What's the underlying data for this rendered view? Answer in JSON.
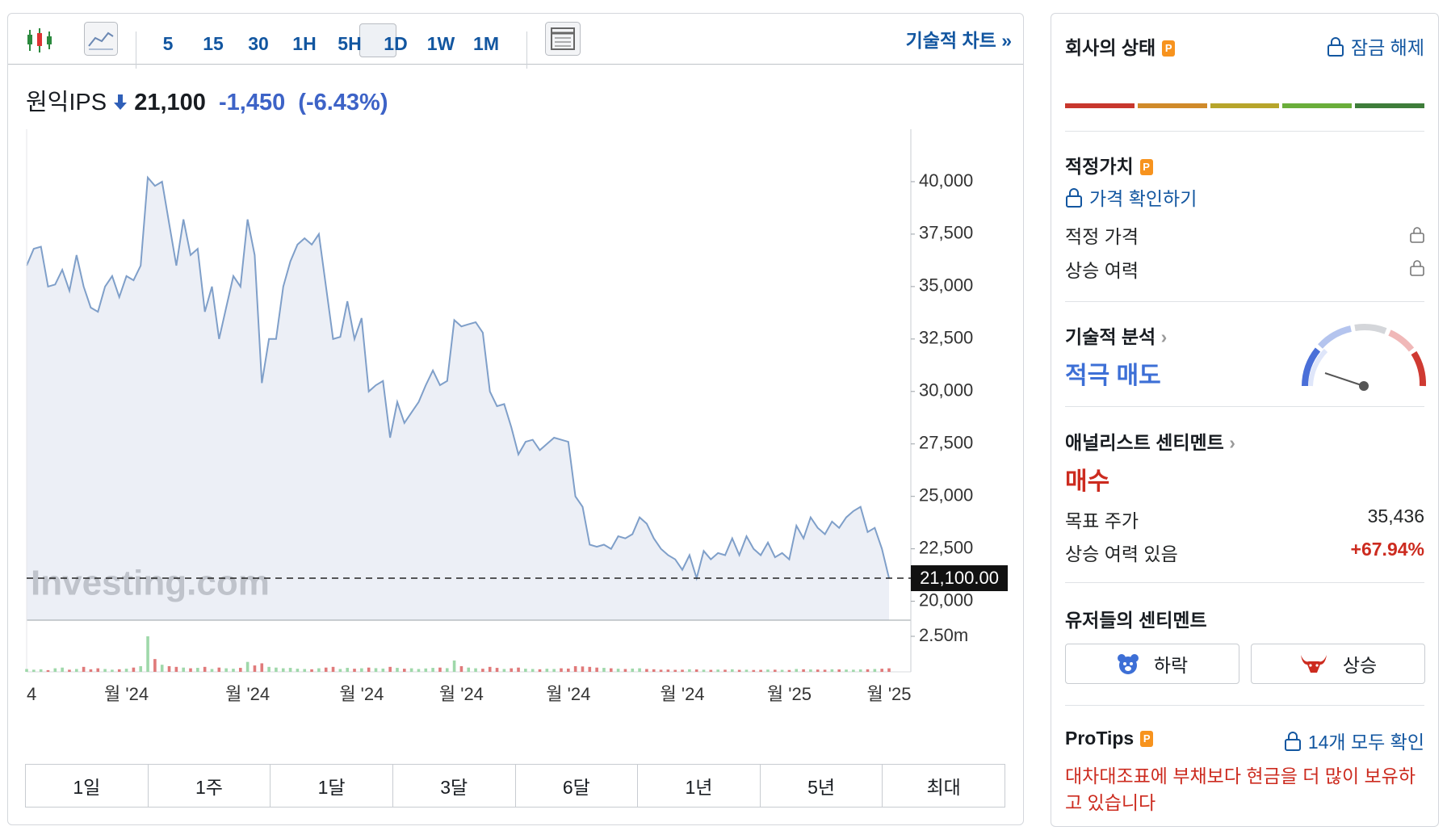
{
  "toolbar": {
    "intervals": [
      "5",
      "15",
      "30",
      "1H",
      "5H",
      "1D",
      "1W",
      "1M"
    ],
    "active_interval": "1D",
    "technical_link": "기술적 차트 »"
  },
  "quote": {
    "name": "원익IPS",
    "price": "21,100",
    "change": "-1,450",
    "change_pct": "(-6.43%)"
  },
  "chart_data": {
    "type": "line",
    "color": "#7f9fc9",
    "area_color": "#eceff6",
    "watermark": "Investing.com",
    "categories": [
      "4",
      null,
      null,
      null,
      null,
      null,
      null,
      null,
      null,
      null,
      null,
      null,
      null,
      null,
      "월 '24",
      null,
      null,
      null,
      null,
      null,
      null,
      null,
      null,
      null,
      null,
      null,
      null,
      null,
      null,
      null,
      null,
      "월 '24",
      null,
      null,
      null,
      null,
      null,
      null,
      null,
      null,
      null,
      null,
      null,
      null,
      null,
      null,
      null,
      "월 '24",
      null,
      null,
      null,
      null,
      null,
      null,
      null,
      null,
      null,
      null,
      null,
      null,
      null,
      "월 '24",
      null,
      null,
      null,
      null,
      null,
      null,
      null,
      null,
      null,
      null,
      null,
      null,
      null,
      null,
      "월 '24",
      null,
      null,
      null,
      null,
      null,
      null,
      null,
      null,
      null,
      null,
      null,
      null,
      null,
      null,
      null,
      "월 '24",
      null,
      null,
      null,
      null,
      null,
      null,
      null,
      null,
      null,
      null,
      null,
      null,
      null,
      null,
      "월 '25",
      null,
      null,
      null,
      null,
      null,
      null,
      null,
      null,
      null,
      null,
      null,
      null,
      null,
      "월 '25"
    ],
    "values": [
      36000,
      36800,
      36900,
      35000,
      35100,
      35800,
      34800,
      36500,
      35000,
      34000,
      33800,
      35000,
      35500,
      34500,
      35500,
      35300,
      36000,
      40200,
      39800,
      40000,
      38000,
      36000,
      38200,
      36500,
      36800,
      33800,
      35000,
      32500,
      34000,
      35500,
      35000,
      38200,
      36500,
      30400,
      32500,
      32500,
      35000,
      36200,
      37000,
      37300,
      37000,
      37500,
      35000,
      32500,
      32600,
      34300,
      32500,
      33500,
      30000,
      30300,
      30500,
      27800,
      29500,
      28500,
      29000,
      29500,
      30300,
      31000,
      30300,
      30500,
      33400,
      33100,
      33200,
      33300,
      32800,
      30000,
      29300,
      29400,
      28300,
      27000,
      27600,
      27700,
      27200,
      27500,
      27800,
      27700,
      27600,
      25000,
      24500,
      22700,
      22600,
      22700,
      22500,
      23100,
      23000,
      23200,
      24000,
      23700,
      23000,
      22500,
      22200,
      22000,
      21500,
      22200,
      21100,
      22400,
      22000,
      22300,
      22200,
      23000,
      22200,
      23100,
      22500,
      22200,
      22800,
      22100,
      22300,
      22000,
      23600,
      23000,
      24000,
      23500,
      23200,
      23800,
      23500,
      24000,
      24300,
      24500,
      23300,
      23500,
      22500,
      21100
    ],
    "ylim": [
      19100,
      42000
    ],
    "yticks": [
      {
        "value": 20000,
        "label": "20,000"
      },
      {
        "value": 22500,
        "label": "22,500"
      },
      {
        "value": 25000,
        "label": "25,000"
      },
      {
        "value": 27500,
        "label": "27,500"
      },
      {
        "value": 30000,
        "label": "30,000"
      },
      {
        "value": 32500,
        "label": "32,500"
      },
      {
        "value": 35000,
        "label": "35,000"
      },
      {
        "value": 37500,
        "label": "37,500"
      },
      {
        "value": 40000,
        "label": "40,000"
      }
    ],
    "reference_line": {
      "value": 21100,
      "label": "21,100.00"
    },
    "volume": {
      "up_color": "#9fd8aa",
      "down_color": "#e07a7a",
      "ylim": [
        0,
        2500000
      ],
      "yticks": [
        {
          "value": 2500000,
          "label": "2.50m"
        }
      ],
      "values": [
        200000,
        150000,
        180000,
        120000,
        250000,
        300000,
        150000,
        200000,
        350000,
        180000,
        250000,
        200000,
        150000,
        180000,
        220000,
        300000,
        400000,
        2500000,
        900000,
        500000,
        400000,
        350000,
        300000,
        250000,
        280000,
        350000,
        200000,
        300000,
        250000,
        220000,
        280000,
        700000,
        450000,
        600000,
        350000,
        300000,
        250000,
        280000,
        220000,
        200000,
        180000,
        250000,
        300000,
        350000,
        200000,
        280000,
        220000,
        250000,
        300000,
        260000,
        230000,
        350000,
        280000,
        220000,
        250000,
        200000,
        240000,
        280000,
        300000,
        260000,
        800000,
        400000,
        300000,
        250000,
        220000,
        350000,
        280000,
        200000,
        250000,
        300000,
        220000,
        200000,
        180000,
        220000,
        200000,
        250000,
        230000,
        400000,
        380000,
        350000,
        300000,
        280000,
        250000,
        220000,
        200000,
        230000,
        250000,
        200000,
        180000,
        150000,
        160000,
        140000,
        150000,
        180000,
        170000,
        150000,
        140000,
        160000,
        150000,
        180000,
        140000,
        150000,
        130000,
        140000,
        160000,
        150000,
        140000,
        130000,
        200000,
        180000,
        170000,
        160000,
        150000,
        180000,
        170000,
        160000,
        150000,
        170000,
        180000,
        200000,
        220000,
        250000
      ]
    }
  },
  "ranges": [
    "1일",
    "1주",
    "1달",
    "3달",
    "6달",
    "1년",
    "5년",
    "최대"
  ],
  "sidebar": {
    "status_title": "회사의 상태",
    "unlock": "잠금 해제",
    "fair_value": {
      "title": "적정가치",
      "check": "가격 확인하기",
      "rows": [
        "적정 가격",
        "상승 여력"
      ]
    },
    "technical": {
      "title": "기술적 분석",
      "signal": "적극 매도"
    },
    "analyst": {
      "title": "애널리스트 센티멘트",
      "signal": "매수",
      "rows": [
        [
          "목표 주가",
          "35,436"
        ],
        [
          "상승 여력 있음",
          "+67.94%"
        ]
      ]
    },
    "users": {
      "title": "유저들의 센티멘트",
      "bear": "하락",
      "bull": "상승"
    },
    "protips": {
      "title": "ProTips",
      "see_all": "14개 모두 확인",
      "tip": "대차대조표에 부채보다 현금을 더 많이 보유하고 있습니다"
    }
  }
}
